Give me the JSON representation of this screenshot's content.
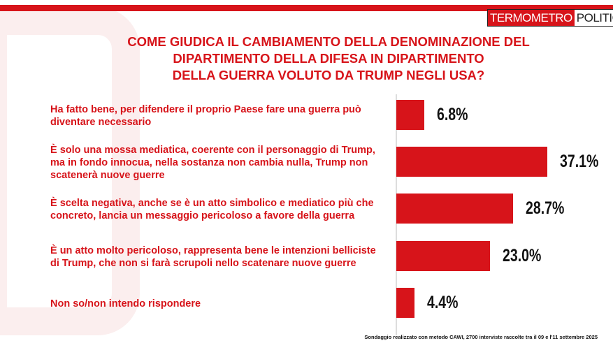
{
  "brand": {
    "left": "TERMOMETRO",
    "right": "POLITICO"
  },
  "chart_data": {
    "type": "bar",
    "orientation": "horizontal",
    "title_lines": [
      "COME GIUDICA IL CAMBIAMENTO DELLA DENOMINAZIONE DEL",
      "DIPARTIMENTO DELLA DIFESA IN DIPARTIMENTO",
      "DELLA GUERRA VOLUTO DA TRUMP NEGLI USA?"
    ],
    "categories": [
      "Ha fatto bene, per difendere il proprio Paese fare una guerra può diventare necessario",
      "È solo una mossa mediatica, coerente con il personaggio di Trump, ma in fondo innocua, nella sostanza non cambia nulla, Trump non scatenerà nuove guerre",
      "È scelta negativa, anche se è un atto simbolico e mediatico più che concreto, lancia un messaggio pericoloso a favore della guerra",
      "È un atto molto pericoloso, rappresenta bene le intenzioni belliciste di Trump, che non si farà scrupoli nello scatenare nuove guerre",
      "Non so/non intendo rispondere"
    ],
    "values": [
      6.8,
      37.1,
      28.7,
      23.0,
      4.4
    ],
    "value_labels": [
      "6.8%",
      "37.1%",
      "28.7%",
      "23.0%",
      "4.4%"
    ],
    "color": "#d7141a",
    "note": "Sondaggio realizzato con metodo CAWI, 2700 interviste raccolte tra il 09 e l'11  settembre 2025"
  }
}
